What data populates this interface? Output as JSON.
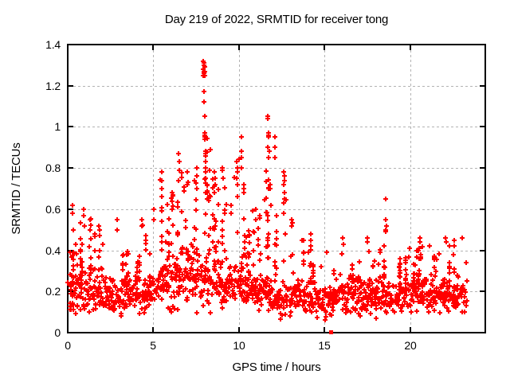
{
  "chart_data": {
    "type": "scatter",
    "title": "Day 219 of 2022, SRMTID for receiver tong",
    "xlabel": "GPS time / hours",
    "ylabel": "SRMTID / TECUs",
    "xlim": [
      0,
      24.4
    ],
    "ylim": [
      0,
      1.4
    ],
    "x_ticks": [
      0,
      5,
      10,
      15,
      20
    ],
    "y_ticks": [
      0,
      0.2,
      0.4,
      0.6,
      0.8,
      1,
      1.2,
      1.4
    ],
    "x_tick_labels": [
      "0",
      "5",
      "10",
      "15",
      "20"
    ],
    "y_tick_labels": [
      "0",
      "0.2",
      "0.4",
      "0.6",
      "0.8",
      "1",
      "1.2",
      "1.4"
    ],
    "grid": true,
    "legend": "none",
    "marker": {
      "shape": "plus",
      "size": 7,
      "color": "#ff0000"
    },
    "colors": {
      "marker": "#ff0000",
      "grid": "#b3b3b3",
      "border": "#000000",
      "background": "#ffffff",
      "text": "#000000"
    },
    "data_time_range": [
      0,
      23.35
    ],
    "notable_points": [
      [
        7.98,
        1.32
      ],
      [
        11.7,
        1.05
      ],
      [
        10.15,
        0.95
      ],
      [
        18.6,
        0.65
      ],
      [
        23.05,
        0.46
      ],
      [
        15.35,
        0
      ]
    ],
    "square_points": [
      [
        15.35,
        0.003
      ]
    ],
    "peaks": [
      {
        "t": 0.3,
        "values": [
          0.62,
          0.58,
          0.5
        ]
      },
      {
        "t": 0.95,
        "values": [
          0.6,
          0.57,
          0.52
        ]
      },
      {
        "t": 1.3,
        "values": [
          0.55,
          0.5
        ]
      },
      {
        "t": 1.85,
        "values": [
          0.52,
          0.5,
          0.47
        ]
      },
      {
        "t": 2.9,
        "values": [
          0.55,
          0.5
        ]
      },
      {
        "t": 4.35,
        "values": [
          0.55,
          0.52
        ]
      },
      {
        "t": 5.05,
        "values": [
          0.6,
          0.55
        ]
      },
      {
        "t": 5.5,
        "values": [
          0.78,
          0.74,
          0.7,
          0.66
        ]
      },
      {
        "t": 6.1,
        "values": [
          0.68,
          0.64,
          0.6
        ]
      },
      {
        "t": 6.5,
        "values": [
          0.87,
          0.83,
          0.79,
          0.74
        ]
      },
      {
        "t": 7.0,
        "values": [
          0.78,
          0.72
        ]
      },
      {
        "t": 7.55,
        "values": [
          0.8,
          0.76,
          0.7
        ]
      },
      {
        "t": 7.95,
        "values": [
          1.32,
          1.31,
          1.3,
          1.28,
          1.27,
          1.26,
          1.25,
          1.17,
          1.12
        ]
      },
      {
        "t": 8.0,
        "values": [
          1.29,
          1.27,
          1.25,
          1.05,
          0.97,
          0.96,
          0.95,
          0.94
        ]
      },
      {
        "t": 8.05,
        "values": [
          0.88,
          0.87,
          0.86,
          0.8,
          0.78,
          0.75
        ]
      },
      {
        "t": 8.15,
        "values": [
          0.72,
          0.68,
          0.65
        ]
      },
      {
        "t": 8.6,
        "values": [
          0.78,
          0.75,
          0.72
        ]
      },
      {
        "t": 9.05,
        "values": [
          0.8,
          0.79,
          0.75
        ]
      },
      {
        "t": 9.55,
        "values": [
          0.62,
          0.58
        ]
      },
      {
        "t": 9.9,
        "values": [
          0.83,
          0.8,
          0.78,
          0.75,
          0.72,
          0.66
        ]
      },
      {
        "t": 10.15,
        "values": [
          0.95,
          0.88,
          0.85,
          0.8
        ]
      },
      {
        "t": 10.3,
        "values": [
          0.72,
          0.7,
          0.68
        ]
      },
      {
        "t": 11.0,
        "values": [
          0.6,
          0.55
        ]
      },
      {
        "t": 11.7,
        "values": [
          1.05,
          1.04,
          0.97,
          0.9
        ]
      },
      {
        "t": 11.75,
        "values": [
          0.96,
          0.95,
          0.88,
          0.85
        ]
      },
      {
        "t": 11.85,
        "values": [
          0.72,
          0.7,
          0.62
        ]
      },
      {
        "t": 12.1,
        "values": [
          0.95,
          0.9,
          0.85
        ]
      },
      {
        "t": 12.65,
        "values": [
          0.78,
          0.76,
          0.74,
          0.72,
          0.68,
          0.65
        ]
      },
      {
        "t": 13.1,
        "values": [
          0.55,
          0.52
        ]
      },
      {
        "t": 14.2,
        "values": [
          0.48,
          0.45
        ]
      },
      {
        "t": 16.1,
        "values": [
          0.46,
          0.43
        ]
      },
      {
        "t": 17.5,
        "values": [
          0.46,
          0.44
        ]
      },
      {
        "t": 18.6,
        "values": [
          0.65,
          0.55,
          0.52,
          0.5,
          0.49
        ]
      },
      {
        "t": 20.6,
        "values": [
          0.46,
          0.44
        ]
      },
      {
        "t": 22.1,
        "values": [
          0.46,
          0.44
        ]
      },
      {
        "t": 22.6,
        "values": [
          0.45,
          0.42
        ]
      },
      {
        "t": 23.05,
        "values": [
          0.46
        ]
      }
    ],
    "envelope": [
      [
        0,
        0.62
      ],
      [
        0.5,
        0.56
      ],
      [
        1,
        0.6
      ],
      [
        1.5,
        0.55
      ],
      [
        2,
        0.52
      ],
      [
        2.5,
        0.48
      ],
      [
        3,
        0.45
      ],
      [
        3.5,
        0.42
      ],
      [
        4,
        0.5
      ],
      [
        4.5,
        0.55
      ],
      [
        5,
        0.62
      ],
      [
        5.5,
        0.78
      ],
      [
        6,
        0.7
      ],
      [
        6.5,
        0.85
      ],
      [
        7,
        0.78
      ],
      [
        7.5,
        0.9
      ],
      [
        7.9,
        1.25
      ],
      [
        8.1,
        1.2
      ],
      [
        8.3,
        0.9
      ],
      [
        8.7,
        0.75
      ],
      [
        9,
        0.8
      ],
      [
        9.5,
        0.82
      ],
      [
        9.9,
        0.85
      ],
      [
        10.2,
        0.9
      ],
      [
        10.5,
        0.72
      ],
      [
        11,
        0.62
      ],
      [
        11.5,
        0.85
      ],
      [
        11.8,
        1.0
      ],
      [
        12.1,
        0.92
      ],
      [
        12.4,
        0.8
      ],
      [
        12.7,
        0.76
      ],
      [
        13,
        0.6
      ],
      [
        13.5,
        0.5
      ],
      [
        14,
        0.48
      ],
      [
        14.5,
        0.44
      ],
      [
        15,
        0.4
      ],
      [
        15.5,
        0.44
      ],
      [
        16,
        0.46
      ],
      [
        16.5,
        0.42
      ],
      [
        17,
        0.44
      ],
      [
        17.5,
        0.46
      ],
      [
        18,
        0.42
      ],
      [
        18.5,
        0.55
      ],
      [
        19,
        0.44
      ],
      [
        19.5,
        0.4
      ],
      [
        20,
        0.42
      ],
      [
        20.5,
        0.46
      ],
      [
        21,
        0.44
      ],
      [
        21.5,
        0.42
      ],
      [
        22,
        0.46
      ],
      [
        22.5,
        0.44
      ],
      [
        23,
        0.46
      ],
      [
        23.35,
        0.4
      ]
    ],
    "baseline": [
      [
        0,
        0.18
      ],
      [
        1,
        0.19
      ],
      [
        2,
        0.18
      ],
      [
        3,
        0.17
      ],
      [
        4,
        0.18
      ],
      [
        5,
        0.2
      ],
      [
        6,
        0.24
      ],
      [
        7,
        0.26
      ],
      [
        8,
        0.26
      ],
      [
        8.5,
        0.22
      ],
      [
        9,
        0.2
      ],
      [
        10,
        0.24
      ],
      [
        10.7,
        0.2
      ],
      [
        11,
        0.18
      ],
      [
        11.5,
        0.2
      ],
      [
        12,
        0.17
      ],
      [
        12.5,
        0.16
      ],
      [
        13,
        0.15
      ],
      [
        13.5,
        0.16
      ],
      [
        14,
        0.17
      ],
      [
        14.5,
        0.16
      ],
      [
        15,
        0.15
      ],
      [
        15.5,
        0.16
      ],
      [
        16,
        0.18
      ],
      [
        16.5,
        0.17
      ],
      [
        17,
        0.18
      ],
      [
        17.5,
        0.18
      ],
      [
        18,
        0.16
      ],
      [
        18.5,
        0.17
      ],
      [
        19,
        0.16
      ],
      [
        19.5,
        0.17
      ],
      [
        20,
        0.18
      ],
      [
        20.5,
        0.19
      ],
      [
        21,
        0.18
      ],
      [
        21.5,
        0.17
      ],
      [
        22,
        0.18
      ],
      [
        22.5,
        0.17
      ],
      [
        23,
        0.18
      ],
      [
        23.35,
        0.18
      ]
    ],
    "generator": {
      "seed": 2190813,
      "t_start": 0.03,
      "t_end": 23.32,
      "column_step": 0.04,
      "t_jitter": 0.03,
      "base_points_max": 4,
      "tall_fraction": 0.12,
      "streak_prob_normal": 0.1,
      "streak_prob_active": 0.22,
      "active_window": [
        5.5,
        13.0
      ],
      "min_value": 0.03
    }
  }
}
